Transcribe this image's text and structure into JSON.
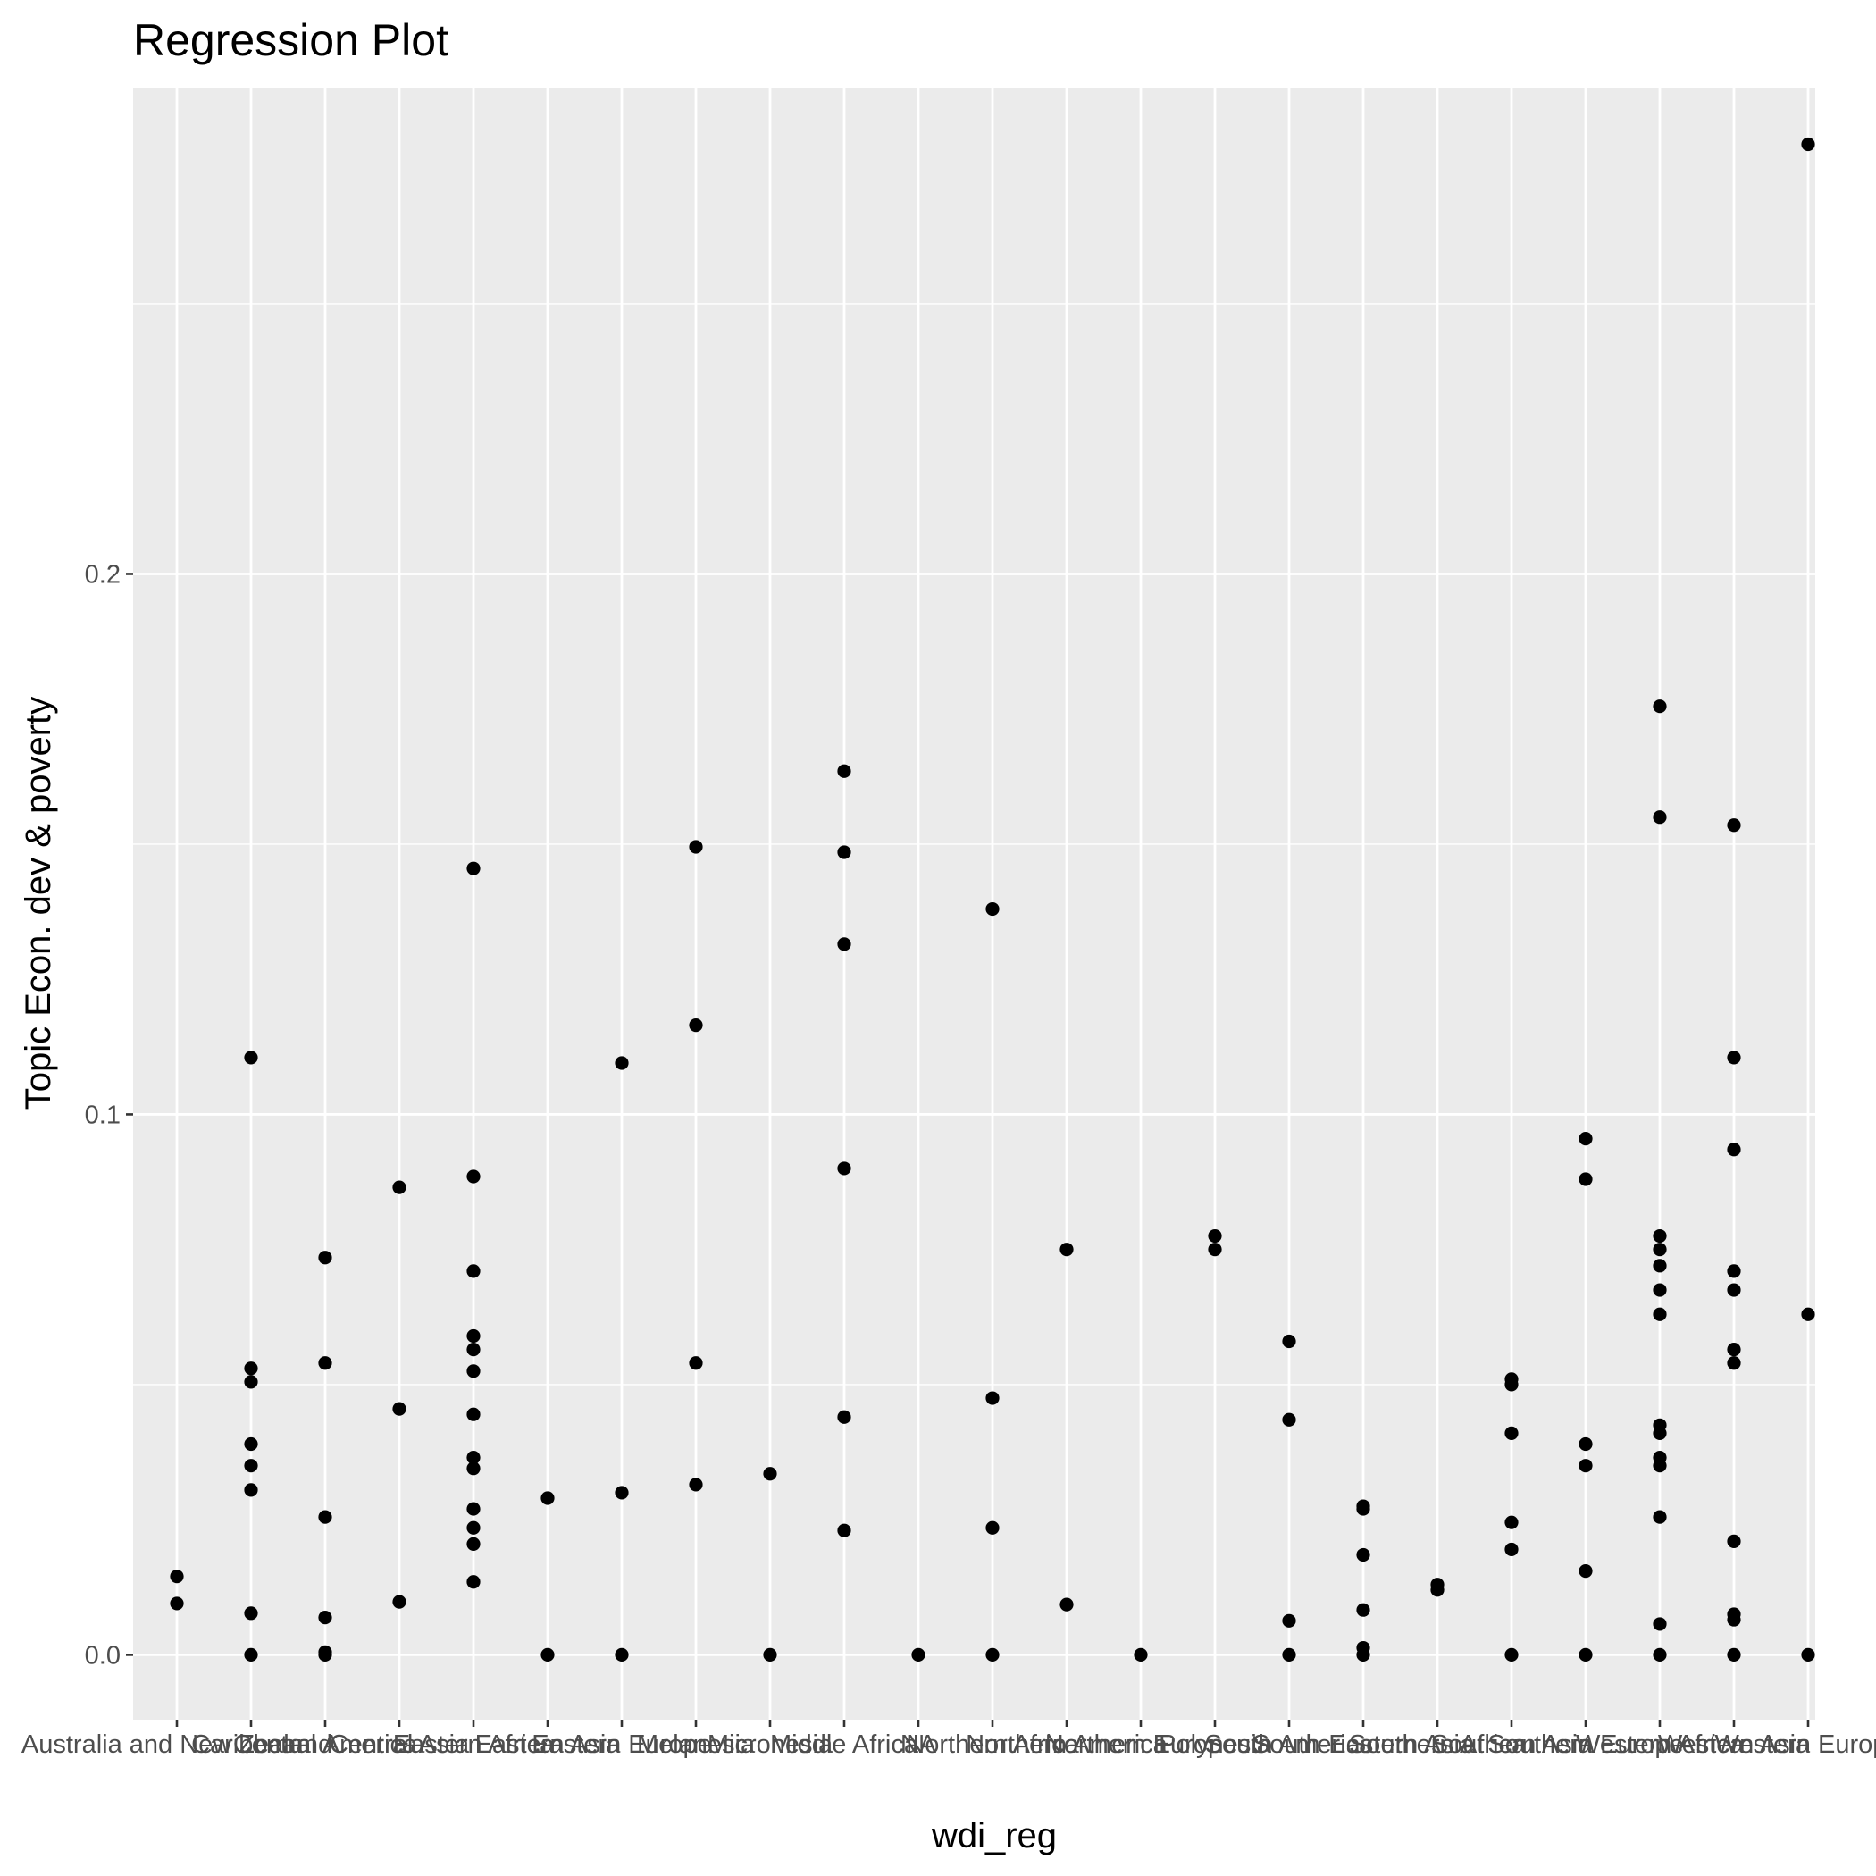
{
  "chart_data": {
    "type": "scatter",
    "title": "Regression Plot",
    "xlabel": "wdi_reg",
    "ylabel": "Topic Econ. dev & poverty",
    "ylim": [
      -0.012,
      0.29
    ],
    "yticks": [
      0.0,
      0.1,
      0.2
    ],
    "ytick_labels": [
      "0.0",
      "0.1",
      "0.2"
    ],
    "grid": true,
    "legend": "none",
    "point_color": "#000000",
    "panel_color": "#ebebeb",
    "grid_color": "#ffffff",
    "categories": [
      "Australia and New Zealand",
      "Caribbean",
      "Central America",
      "Central Asia",
      "Eastern Africa",
      "Eastern Asia",
      "Eastern Europe",
      "Melanesia",
      "Micronesia",
      "Middle Africa",
      "NA",
      "Northern Africa",
      "Northern America",
      "Northern Europe",
      "Polynesia",
      "South America",
      "South-Eastern Asia",
      "Southern Africa",
      "Southern Asia",
      "Southern Europe",
      "Western Africa",
      "Western Asia",
      "Western Europe"
    ],
    "points": [
      {
        "c": 0,
        "y": 0.0145
      },
      {
        "c": 0,
        "y": 0.0095
      },
      {
        "c": 1,
        "y": 0.1105
      },
      {
        "c": 1,
        "y": 0.053
      },
      {
        "c": 1,
        "y": 0.0505
      },
      {
        "c": 1,
        "y": 0.039
      },
      {
        "c": 1,
        "y": 0.035
      },
      {
        "c": 1,
        "y": 0.0305
      },
      {
        "c": 1,
        "y": 0.0077
      },
      {
        "c": 1,
        "y": 0.0
      },
      {
        "c": 2,
        "y": 0.0735
      },
      {
        "c": 2,
        "y": 0.054
      },
      {
        "c": 2,
        "y": 0.0255
      },
      {
        "c": 2,
        "y": 0.0069
      },
      {
        "c": 2,
        "y": 0.0005
      },
      {
        "c": 2,
        "y": 0.0
      },
      {
        "c": 3,
        "y": 0.0865
      },
      {
        "c": 3,
        "y": 0.0455
      },
      {
        "c": 3,
        "y": 0.0098
      },
      {
        "c": 4,
        "y": 0.1455
      },
      {
        "c": 4,
        "y": 0.0885
      },
      {
        "c": 4,
        "y": 0.071
      },
      {
        "c": 4,
        "y": 0.059
      },
      {
        "c": 4,
        "y": 0.0565
      },
      {
        "c": 4,
        "y": 0.0525
      },
      {
        "c": 4,
        "y": 0.0445
      },
      {
        "c": 4,
        "y": 0.0365
      },
      {
        "c": 4,
        "y": 0.0345
      },
      {
        "c": 4,
        "y": 0.027
      },
      {
        "c": 4,
        "y": 0.0235
      },
      {
        "c": 4,
        "y": 0.0205
      },
      {
        "c": 4,
        "y": 0.0135
      },
      {
        "c": 5,
        "y": 0.029
      },
      {
        "c": 5,
        "y": 0.0
      },
      {
        "c": 6,
        "y": 0.1095
      },
      {
        "c": 6,
        "y": 0.03
      },
      {
        "c": 6,
        "y": 0.0
      },
      {
        "c": 7,
        "y": 0.1495
      },
      {
        "c": 7,
        "y": 0.1165
      },
      {
        "c": 7,
        "y": 0.054
      },
      {
        "c": 7,
        "y": 0.0315
      },
      {
        "c": 8,
        "y": 0.0335
      },
      {
        "c": 8,
        "y": 0.0
      },
      {
        "c": 9,
        "y": 0.1635
      },
      {
        "c": 9,
        "y": 0.1485
      },
      {
        "c": 9,
        "y": 0.1315
      },
      {
        "c": 9,
        "y": 0.09
      },
      {
        "c": 9,
        "y": 0.044
      },
      {
        "c": 9,
        "y": 0.023
      },
      {
        "c": 10,
        "y": 0.0
      },
      {
        "c": 11,
        "y": 0.138
      },
      {
        "c": 11,
        "y": 0.0475
      },
      {
        "c": 11,
        "y": 0.0235
      },
      {
        "c": 11,
        "y": 0.0
      },
      {
        "c": 12,
        "y": 0.075
      },
      {
        "c": 12,
        "y": 0.0093
      },
      {
        "c": 13,
        "y": 0.0
      },
      {
        "c": 14,
        "y": 0.0775
      },
      {
        "c": 14,
        "y": 0.075
      },
      {
        "c": 15,
        "y": 0.058
      },
      {
        "c": 15,
        "y": 0.0435
      },
      {
        "c": 15,
        "y": 0.0063
      },
      {
        "c": 15,
        "y": 0.0
      },
      {
        "c": 16,
        "y": 0.0275
      },
      {
        "c": 16,
        "y": 0.027
      },
      {
        "c": 16,
        "y": 0.0185
      },
      {
        "c": 16,
        "y": 0.0083
      },
      {
        "c": 16,
        "y": 0.0013
      },
      {
        "c": 16,
        "y": 0.0
      },
      {
        "c": 17,
        "y": 0.013
      },
      {
        "c": 17,
        "y": 0.012
      },
      {
        "c": 18,
        "y": 0.051
      },
      {
        "c": 18,
        "y": 0.05
      },
      {
        "c": 18,
        "y": 0.041
      },
      {
        "c": 18,
        "y": 0.0245
      },
      {
        "c": 18,
        "y": 0.0195
      },
      {
        "c": 18,
        "y": 0.0
      },
      {
        "c": 19,
        "y": 0.0955
      },
      {
        "c": 19,
        "y": 0.088
      },
      {
        "c": 19,
        "y": 0.039
      },
      {
        "c": 19,
        "y": 0.035
      },
      {
        "c": 19,
        "y": 0.0155
      },
      {
        "c": 19,
        "y": 0.0
      },
      {
        "c": 20,
        "y": 0.1755
      },
      {
        "c": 20,
        "y": 0.155
      },
      {
        "c": 20,
        "y": 0.0775
      },
      {
        "c": 20,
        "y": 0.075
      },
      {
        "c": 20,
        "y": 0.072
      },
      {
        "c": 20,
        "y": 0.0675
      },
      {
        "c": 20,
        "y": 0.063
      },
      {
        "c": 20,
        "y": 0.0425
      },
      {
        "c": 20,
        "y": 0.041
      },
      {
        "c": 20,
        "y": 0.0365
      },
      {
        "c": 20,
        "y": 0.035
      },
      {
        "c": 20,
        "y": 0.0255
      },
      {
        "c": 20,
        "y": 0.0057
      },
      {
        "c": 20,
        "y": 0.0
      },
      {
        "c": 21,
        "y": 0.1535
      },
      {
        "c": 21,
        "y": 0.1105
      },
      {
        "c": 21,
        "y": 0.0935
      },
      {
        "c": 21,
        "y": 0.071
      },
      {
        "c": 21,
        "y": 0.0675
      },
      {
        "c": 21,
        "y": 0.0565
      },
      {
        "c": 21,
        "y": 0.054
      },
      {
        "c": 21,
        "y": 0.021
      },
      {
        "c": 21,
        "y": 0.0075
      },
      {
        "c": 21,
        "y": 0.0065
      },
      {
        "c": 21,
        "y": 0.0
      },
      {
        "c": 22,
        "y": 0.2795
      },
      {
        "c": 22,
        "y": 0.063
      },
      {
        "c": 22,
        "y": 0.0
      }
    ]
  }
}
